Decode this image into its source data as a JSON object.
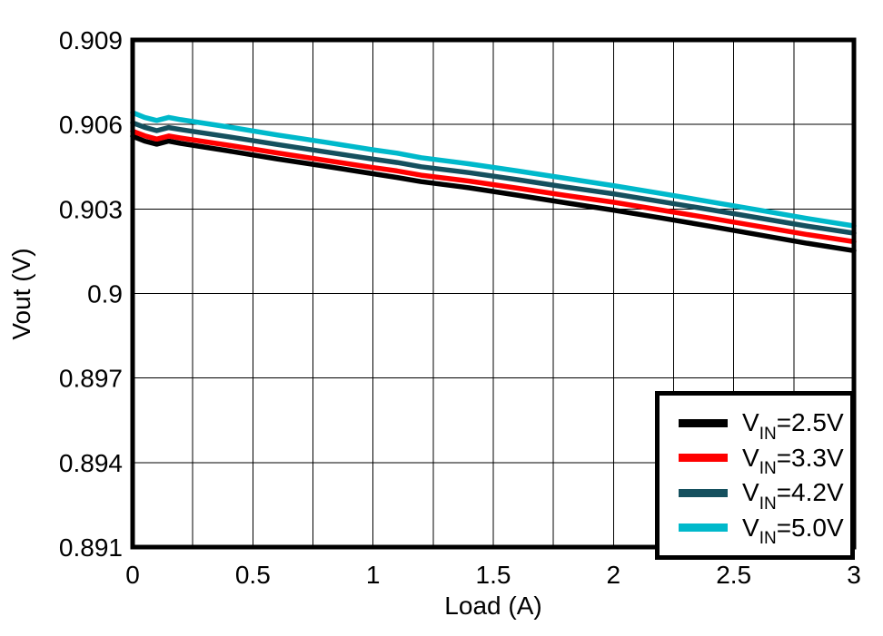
{
  "chart_data": {
    "type": "line",
    "title": "",
    "xlabel": "Load (A)",
    "ylabel": "Vout (V)",
    "xlim": [
      0,
      3
    ],
    "ylim": [
      0.891,
      0.909
    ],
    "grid": true,
    "x_grid_step": 0.25,
    "y_grid_step": 0.003,
    "x_ticks": {
      "values": [
        0,
        0.5,
        1,
        1.5,
        2,
        2.5,
        3
      ],
      "labels": [
        "0",
        "0.5",
        "1",
        "1.5",
        "2",
        "2.5",
        "3"
      ]
    },
    "y_ticks": {
      "values": [
        0.909,
        0.906,
        0.903,
        0.9,
        0.897,
        0.894,
        0.891
      ],
      "labels": [
        "0.909",
        "0.906",
        "0.903",
        "0.9",
        "0.897",
        "0.894",
        "0.891"
      ]
    },
    "legend_position": "bottom-right",
    "x": [
      0,
      0.05,
      0.1,
      0.15,
      0.2,
      0.4,
      0.6,
      0.8,
      1.0,
      1.1,
      1.2,
      1.4,
      1.6,
      1.8,
      2.0,
      2.2,
      2.4,
      2.6,
      2.8,
      3.0
    ],
    "series": [
      {
        "name": "VIN=2.5V",
        "color": "#000000",
        "values": [
          0.90558,
          0.90541,
          0.9053,
          0.90541,
          0.90533,
          0.90506,
          0.90478,
          0.90452,
          0.90425,
          0.90412,
          0.90397,
          0.90375,
          0.90349,
          0.90322,
          0.90296,
          0.90268,
          0.90239,
          0.90209,
          0.90179,
          0.90152
        ]
      },
      {
        "name": "VIN=3.3V",
        "color": "#ff0000",
        "values": [
          0.90576,
          0.9056,
          0.90548,
          0.90559,
          0.90552,
          0.90526,
          0.90499,
          0.90473,
          0.90447,
          0.90435,
          0.9042,
          0.90399,
          0.90374,
          0.90348,
          0.90324,
          0.90296,
          0.90268,
          0.90239,
          0.9021,
          0.90184
        ]
      },
      {
        "name": "VIN=4.2V",
        "color": "#15505e",
        "values": [
          0.90606,
          0.9059,
          0.90578,
          0.90589,
          0.90582,
          0.90556,
          0.90529,
          0.90503,
          0.90477,
          0.90465,
          0.9045,
          0.90429,
          0.90404,
          0.90378,
          0.90354,
          0.90326,
          0.90298,
          0.90269,
          0.9024,
          0.90214
        ]
      },
      {
        "name": "VIN=5.0V",
        "color": "#00b9cb",
        "values": [
          0.90642,
          0.90625,
          0.90614,
          0.90625,
          0.90617,
          0.90591,
          0.90563,
          0.90537,
          0.9051,
          0.90498,
          0.90482,
          0.9046,
          0.90435,
          0.90409,
          0.90383,
          0.90355,
          0.90326,
          0.90297,
          0.90267,
          0.9024
        ]
      }
    ]
  },
  "legend": {
    "entries": [
      {
        "v": "V",
        "sub": "IN",
        "rest": "=2.5V",
        "color": "#000000"
      },
      {
        "v": "V",
        "sub": "IN",
        "rest": "=3.3V",
        "color": "#ff0000"
      },
      {
        "v": "V",
        "sub": "IN",
        "rest": "=4.2V",
        "color": "#15505e"
      },
      {
        "v": "V",
        "sub": "IN",
        "rest": "=5.0V",
        "color": "#00b9cb"
      }
    ]
  }
}
